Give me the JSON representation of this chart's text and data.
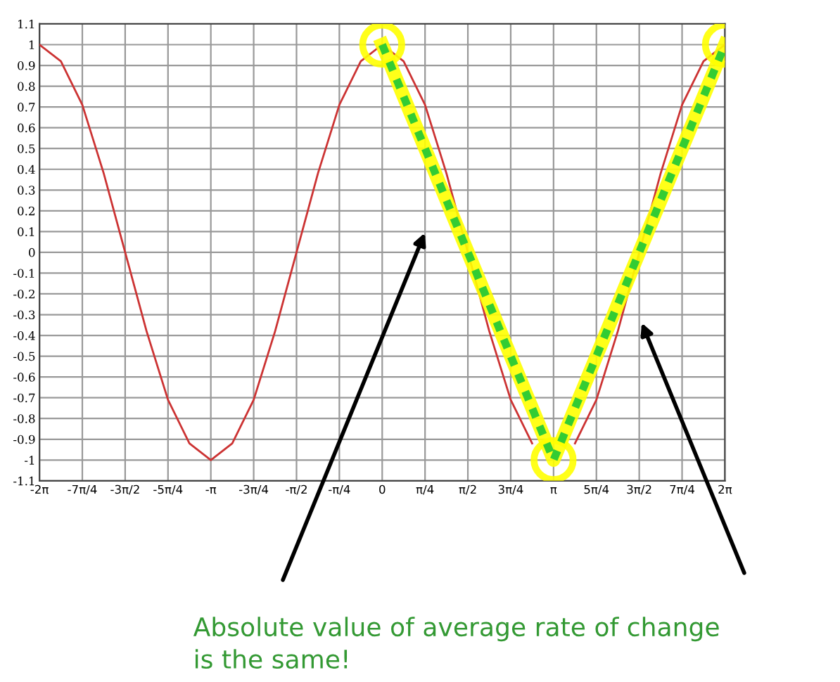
{
  "chart_data": {
    "type": "line",
    "x": [
      -6.2832,
      -5.8905,
      -5.4978,
      -5.1051,
      -4.7124,
      -4.3197,
      -3.927,
      -3.5343,
      -3.1416,
      -2.7489,
      -2.3562,
      -1.9635,
      -1.5708,
      -1.1781,
      -0.7854,
      -0.3927,
      0,
      0.3927,
      0.7854,
      1.1781,
      1.5708,
      1.9635,
      2.3562,
      2.7489,
      3.1416,
      3.5343,
      3.927,
      4.3197,
      4.7124,
      5.1051,
      5.4978,
      5.8905,
      6.2832
    ],
    "series": [
      {
        "color": "#cc3333",
        "values": [
          1,
          0.92,
          0.71,
          0.38,
          0,
          -0.38,
          -0.71,
          -0.92,
          -1,
          -0.92,
          -0.71,
          -0.38,
          0,
          0.38,
          0.71,
          0.92,
          1,
          0.92,
          0.71,
          0.38,
          0,
          -0.38,
          -0.71,
          -0.92,
          null,
          -0.92,
          -0.71,
          -0.38,
          0,
          0.38,
          0.71,
          0.92,
          1
        ]
      },
      {
        "color": "#ffff00",
        "x": [
          0,
          3.1416,
          6.2832
        ],
        "values": [
          1,
          -1,
          1
        ],
        "marker": "circle",
        "line_style": "solid"
      },
      {
        "color": "#33cc33",
        "x": [
          0,
          3.1416,
          6.2832
        ],
        "values": [
          1,
          -1,
          1
        ],
        "line_style": "dotted"
      }
    ],
    "xlim": [
      -6.2832,
      6.2832
    ],
    "xticks": [
      {
        "value": -6.2832,
        "label": "-2π"
      },
      {
        "value": -5.4978,
        "label": "-7π/4"
      },
      {
        "value": -4.7124,
        "label": "-3π/2"
      },
      {
        "value": -3.927,
        "label": "-5π/4"
      },
      {
        "value": -3.1416,
        "label": "-π"
      },
      {
        "value": -2.3562,
        "label": "-3π/4"
      },
      {
        "value": -1.5708,
        "label": "-π/2"
      },
      {
        "value": -0.7854,
        "label": "-π/4"
      },
      0,
      {
        "value": 0.7854,
        "label": "π/4"
      },
      {
        "value": 1.5708,
        "label": "π/2"
      },
      {
        "value": 2.3562,
        "label": "3π/4"
      },
      {
        "value": 3.1416,
        "label": "π"
      },
      {
        "value": 3.927,
        "label": "5π/4"
      },
      {
        "value": 4.7124,
        "label": "3π/2"
      },
      {
        "value": 5.4978,
        "label": "7π/4"
      },
      {
        "value": 6.2832,
        "label": "2π"
      }
    ],
    "ylim": [
      -1.1,
      1.1
    ],
    "yticks": [
      -1.1,
      -1,
      -0.9,
      -0.8,
      -0.7,
      -0.6,
      -0.5,
      -0.4,
      -0.3,
      -0.2,
      -0.1,
      0,
      0.1,
      0.2,
      0.3,
      0.4,
      0.5,
      0.6,
      0.7,
      0.8,
      0.9,
      1,
      1.1
    ],
    "grid": true,
    "annotations": [
      "Absolute value of average rate of change\nis the same!"
    ]
  }
}
